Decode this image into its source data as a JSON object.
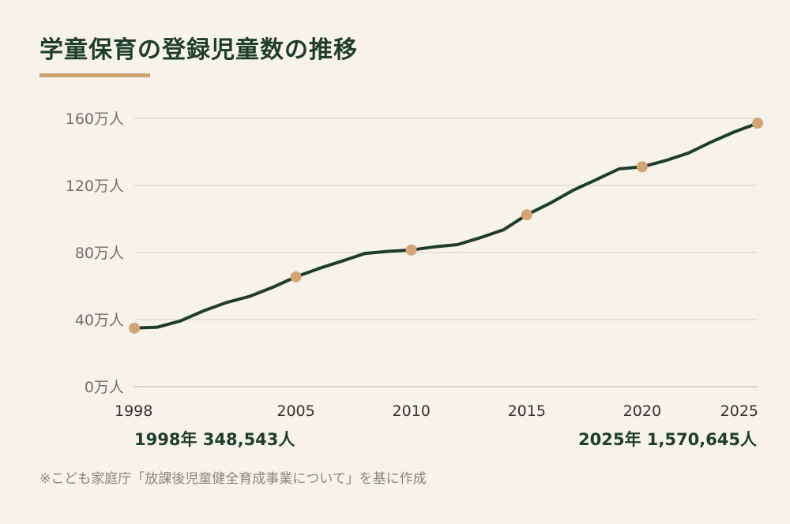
{
  "title": "学童保育の登録児童数の推移",
  "annotations": {
    "start": "1998年 348,543人",
    "end": "2025年 1,570,645人"
  },
  "source": "※こども家庭庁「放課後児童健全育成事業について」を基に作成",
  "colors": {
    "line": "#1f3d2b",
    "marker": "#d4a574",
    "grid": "#e2dccf",
    "accent": "#c9a173"
  },
  "chart_data": {
    "type": "line",
    "title": "学童保育の登録児童数の推移",
    "xlabel": "",
    "ylabel": "",
    "ylim": [
      0,
      160
    ],
    "y_ticks": [
      {
        "value": 0,
        "label": "0万人"
      },
      {
        "value": 40,
        "label": "40万人"
      },
      {
        "value": 80,
        "label": "80万人"
      },
      {
        "value": 120,
        "label": "120万人"
      },
      {
        "value": 160,
        "label": "160万人"
      }
    ],
    "x_ticks": [
      1998,
      2005,
      2010,
      2015,
      2020,
      2025
    ],
    "grid": true,
    "x": [
      1998,
      1999,
      2000,
      2001,
      2002,
      2003,
      2004,
      2005,
      2006,
      2007,
      2008,
      2009,
      2010,
      2011,
      2012,
      2013,
      2014,
      2015,
      2016,
      2017,
      2018,
      2019,
      2020,
      2021,
      2022,
      2023,
      2024,
      2025
    ],
    "series": [
      {
        "values": [
          34.9,
          35.5,
          39.2,
          45.2,
          50.2,
          53.9,
          59.3,
          65.5,
          70.5,
          74.9,
          79.5,
          80.7,
          81.5,
          83.4,
          84.7,
          88.9,
          93.6,
          102.5,
          109.3,
          117.1,
          123.4,
          129.9,
          131.1,
          134.8,
          139.3,
          146,
          152,
          157.1
        ],
        "markers_at": [
          1998,
          2005,
          2010,
          2015,
          2020,
          2025
        ]
      }
    ]
  }
}
